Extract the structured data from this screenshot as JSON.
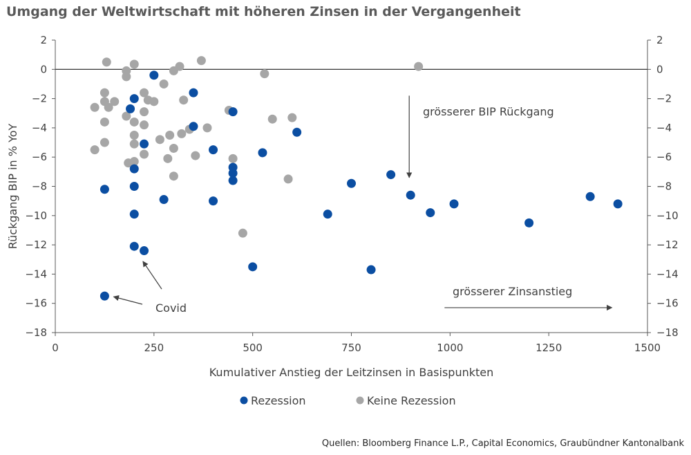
{
  "title": "Umgang der Weltwirtschaft mit höheren Zinsen in der Vergangenheit",
  "source": "Quellen: Bloomberg Finance L.P., Capital Economics, Graubündner Kantonalbank",
  "chart_data": {
    "type": "scatter",
    "xlabel": "Kumulativer Anstieg der Leitzinsen in Basispunkten",
    "ylabel": "Rückgang BIP in % YoY",
    "xlim": [
      0,
      1500
    ],
    "ylim": [
      -18,
      2
    ],
    "xticks": [
      0,
      250,
      500,
      750,
      1000,
      1250,
      1500
    ],
    "xtick_labels": [
      "0",
      "250",
      "500",
      "750",
      "1000",
      "1250",
      "1500"
    ],
    "yticks": [
      2,
      0,
      -2,
      -4,
      -6,
      -8,
      -10,
      -12,
      -14,
      -16,
      -18
    ],
    "ytick_labels": [
      "2",
      "0",
      "−2",
      "−4",
      "−6",
      "−8",
      "−10",
      "−12",
      "−14",
      "−16",
      "−18"
    ],
    "secondary_y": true,
    "grid": false,
    "zero_line": true,
    "legend_position": "bottom",
    "series": [
      {
        "name": "Rezession",
        "color": "#0B4EA2",
        "points": [
          [
            125,
            -8.2
          ],
          [
            125,
            -15.5
          ],
          [
            190,
            -2.7
          ],
          [
            200,
            -2.0
          ],
          [
            200,
            -6.8
          ],
          [
            200,
            -8.0
          ],
          [
            200,
            -9.9
          ],
          [
            200,
            -12.1
          ],
          [
            225,
            -5.1
          ],
          [
            225,
            -12.4
          ],
          [
            250,
            -0.4
          ],
          [
            275,
            -8.9
          ],
          [
            350,
            -1.6
          ],
          [
            350,
            -3.9
          ],
          [
            400,
            -5.5
          ],
          [
            400,
            -9.0
          ],
          [
            450,
            -2.9
          ],
          [
            450,
            -6.7
          ],
          [
            450,
            -7.1
          ],
          [
            450,
            -7.6
          ],
          [
            500,
            -13.5
          ],
          [
            525,
            -5.7
          ],
          [
            612,
            -4.3
          ],
          [
            690,
            -9.9
          ],
          [
            750,
            -7.8
          ],
          [
            800,
            -13.7
          ],
          [
            850,
            -7.2
          ],
          [
            900,
            -8.6
          ],
          [
            950,
            -9.8
          ],
          [
            1010,
            -9.2
          ],
          [
            1200,
            -10.5
          ],
          [
            1355,
            -8.7
          ],
          [
            1425,
            -9.2
          ]
        ]
      },
      {
        "name": "Keine Rezession",
        "color": "#A6A6A6",
        "points": [
          [
            100,
            -2.6
          ],
          [
            100,
            -5.5
          ],
          [
            125,
            -1.6
          ],
          [
            125,
            -2.2
          ],
          [
            125,
            -3.6
          ],
          [
            125,
            -5.0
          ],
          [
            130,
            0.5
          ],
          [
            135,
            -2.6
          ],
          [
            150,
            -2.2
          ],
          [
            180,
            -0.1
          ],
          [
            180,
            -0.5
          ],
          [
            180,
            -3.2
          ],
          [
            185,
            -6.4
          ],
          [
            200,
            0.35
          ],
          [
            200,
            -3.6
          ],
          [
            200,
            -4.5
          ],
          [
            200,
            -5.1
          ],
          [
            200,
            -6.3
          ],
          [
            225,
            -1.6
          ],
          [
            225,
            -2.9
          ],
          [
            225,
            -3.8
          ],
          [
            225,
            -5.8
          ],
          [
            235,
            -2.1
          ],
          [
            250,
            -2.2
          ],
          [
            265,
            -4.8
          ],
          [
            275,
            -1.0
          ],
          [
            285,
            -6.1
          ],
          [
            290,
            -4.5
          ],
          [
            300,
            -0.1
          ],
          [
            300,
            -5.4
          ],
          [
            300,
            -7.3
          ],
          [
            315,
            0.2
          ],
          [
            320,
            -4.4
          ],
          [
            325,
            -2.1
          ],
          [
            340,
            -4.1
          ],
          [
            355,
            -5.9
          ],
          [
            370,
            0.6
          ],
          [
            385,
            -4.0
          ],
          [
            440,
            -2.8
          ],
          [
            450,
            -6.1
          ],
          [
            475,
            -11.2
          ],
          [
            530,
            -0.3
          ],
          [
            550,
            -3.4
          ],
          [
            590,
            -7.5
          ],
          [
            600,
            -3.3
          ],
          [
            920,
            0.2
          ]
        ]
      }
    ],
    "annotations": [
      {
        "text": "grösserer BIP Rückgang",
        "arrow": "down",
        "x_anchor": 900,
        "y_from": -1.8,
        "y_to": -7.4
      },
      {
        "text": "grösserer Zinsanstieg",
        "arrow": "right",
        "y_anchor": -16.2,
        "x_from": 1000,
        "x_to": 1410
      },
      {
        "text": "Covid",
        "arrow_targets": [
          [
            125,
            -15.5
          ],
          [
            230,
            -13.6
          ]
        ]
      }
    ]
  }
}
